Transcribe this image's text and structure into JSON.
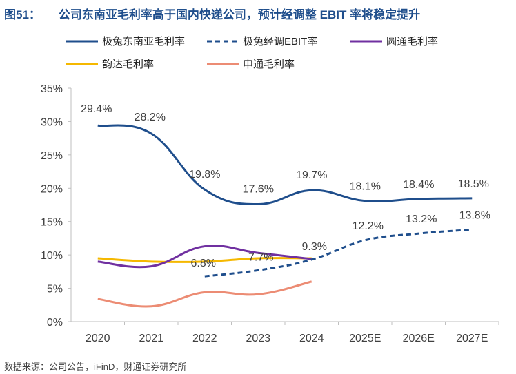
{
  "header": {
    "figure_no": "图51：",
    "title": "公司东南亚毛利率高于国内快递公司，预计经调整 EBIT 率将稳定提升"
  },
  "footer": {
    "source": "数据来源：公司公告，iFinD，财通证券研究所"
  },
  "chart_data": {
    "type": "line",
    "title": "公司东南亚毛利率高于国内快递公司，预计经调整 EBIT 率将稳定提升",
    "xlabel": "",
    "ylabel": "",
    "ylim": [
      0,
      35
    ],
    "yticks": [
      "0%",
      "5%",
      "10%",
      "15%",
      "20%",
      "25%",
      "30%",
      "35%"
    ],
    "categories": [
      "2020",
      "2021",
      "2022",
      "2023",
      "2024",
      "2025E",
      "2026E",
      "2027E"
    ],
    "grid": false,
    "legend": "top",
    "series": [
      {
        "name": "极兔东南亚毛利率",
        "color": "#1f4e8c",
        "dashed": false,
        "values": [
          29.4,
          28.2,
          19.8,
          17.6,
          19.7,
          18.1,
          18.4,
          18.5
        ],
        "labels": [
          "29.4%",
          "28.2%",
          "19.8%",
          "17.6%",
          "19.7%",
          "18.1%",
          "18.4%",
          "18.5%"
        ]
      },
      {
        "name": "极兔经调EBIT率",
        "color": "#1f4e8c",
        "dashed": true,
        "values": [
          null,
          null,
          6.8,
          7.7,
          9.3,
          12.2,
          13.2,
          13.8
        ],
        "labels": [
          null,
          null,
          "6.8%",
          "7.7%",
          "9.3%",
          "12.2%",
          "13.2%",
          "13.8%"
        ]
      },
      {
        "name": "圆通毛利率",
        "color": "#7030a0",
        "dashed": false,
        "values": [
          9.0,
          8.3,
          11.3,
          10.3,
          9.4,
          null,
          null,
          null
        ],
        "labels": [
          null,
          null,
          null,
          null,
          null,
          null,
          null,
          null
        ]
      },
      {
        "name": "韵达毛利率",
        "color": "#f5b800",
        "dashed": false,
        "values": [
          9.5,
          9.0,
          9.0,
          9.5,
          9.5,
          null,
          null,
          null
        ],
        "labels": [
          null,
          null,
          null,
          null,
          null,
          null,
          null,
          null
        ]
      },
      {
        "name": "申通毛利率",
        "color": "#ec8c74",
        "dashed": false,
        "values": [
          3.4,
          2.3,
          4.4,
          4.1,
          6.0,
          null,
          null,
          null
        ],
        "labels": [
          null,
          null,
          null,
          null,
          null,
          null,
          null,
          null
        ]
      }
    ]
  }
}
